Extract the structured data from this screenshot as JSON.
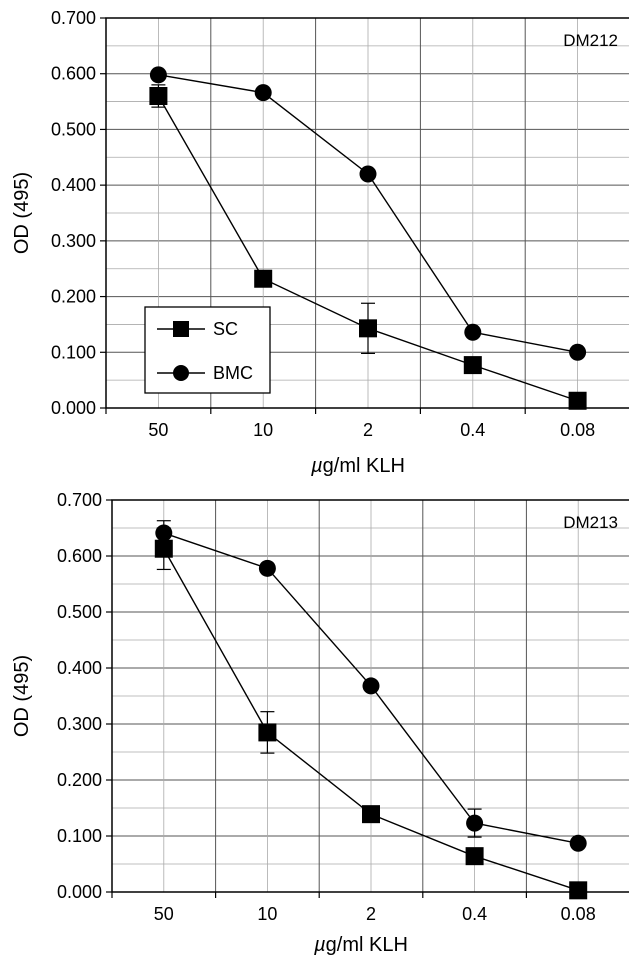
{
  "chart_data": [
    {
      "type": "line",
      "panel_label": "DM212",
      "categories": [
        "50",
        "10",
        "2",
        "0.4",
        "0.08"
      ],
      "xlabel_prefix": "µ",
      "xlabel_rest": "g/ml KLH",
      "ylabel": "OD (495)",
      "ylim": [
        0,
        0.7
      ],
      "yticks": [
        "0.000",
        "0.100",
        "0.200",
        "0.300",
        "0.400",
        "0.500",
        "0.600",
        "0.700"
      ],
      "grid": true,
      "legend_position": "bottom-left",
      "series": [
        {
          "name": "SC",
          "marker": "square",
          "values": [
            0.56,
            0.232,
            0.143,
            0.077,
            0.013
          ],
          "errors": [
            0.02,
            0.0,
            0.045,
            0.0,
            0.0
          ]
        },
        {
          "name": "BMC",
          "marker": "circle",
          "values": [
            0.598,
            0.566,
            0.42,
            0.136,
            0.1
          ],
          "errors": [
            0.0,
            0.0,
            0.0,
            0.0,
            0.0
          ]
        }
      ]
    },
    {
      "type": "line",
      "panel_label": "DM213",
      "categories": [
        "50",
        "10",
        "2",
        "0.4",
        "0.08"
      ],
      "xlabel_prefix": "µ",
      "xlabel_rest": "g/ml KLH",
      "ylabel": "OD (495)",
      "ylim": [
        0,
        0.7
      ],
      "yticks": [
        "0.000",
        "0.100",
        "0.200",
        "0.300",
        "0.400",
        "0.500",
        "0.600",
        "0.700"
      ],
      "grid": true,
      "legend_position": "none",
      "series": [
        {
          "name": "SC",
          "marker": "square",
          "values": [
            0.613,
            0.285,
            0.139,
            0.064,
            0.003
          ],
          "errors": [
            0.037,
            0.037,
            0.0,
            0.0,
            0.0
          ]
        },
        {
          "name": "BMC",
          "marker": "circle",
          "values": [
            0.641,
            0.578,
            0.368,
            0.123,
            0.087
          ],
          "errors": [
            0.022,
            0.0,
            0.0,
            0.025,
            0.0
          ]
        }
      ]
    }
  ]
}
